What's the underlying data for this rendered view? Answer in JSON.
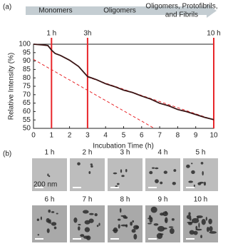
{
  "panel_a": "(a)",
  "panel_b": "(b)",
  "chart_data": {
    "type": "line",
    "stages": [
      [
        "Monomers"
      ],
      [
        "Oligomers"
      ],
      [
        "Oligomers, Protofibrils,",
        "and Fibrils"
      ]
    ],
    "markers": [
      {
        "x": 1,
        "label": "1 h"
      },
      {
        "x": 3,
        "label": "3h"
      },
      {
        "x": 10,
        "label": "10 h"
      }
    ],
    "marker_color": "#e8262a",
    "x_label": "Incubation Time (h)",
    "y_label": "Relative Intensity (%)",
    "x": [
      0,
      0.5,
      0.8,
      1,
      1.2,
      1.5,
      2,
      2.5,
      3,
      3.5,
      4,
      4.5,
      5,
      5.5,
      6,
      6.5,
      7,
      7.5,
      8,
      8.5,
      9,
      9.5,
      10
    ],
    "values": [
      100,
      99.6,
      99.2,
      96.5,
      94.5,
      93.3,
      90.5,
      86.8,
      80.8,
      78.9,
      76.5,
      74.8,
      72.7,
      71.3,
      69.2,
      67.4,
      64.9,
      63.4,
      61.2,
      59.9,
      58.2,
      56.5,
      55.2
    ],
    "color": "#3a1414",
    "fits": [
      {
        "x": [
          0,
          6.7
        ],
        "values": [
          91,
          50
        ]
      },
      {
        "x": [
          3,
          10
        ],
        "values": [
          80.5,
          55
        ]
      }
    ],
    "xlim": [
      0,
      10
    ],
    "ylim": [
      50,
      100
    ],
    "xticks": [
      0,
      1,
      2,
      3,
      4,
      5,
      6,
      7,
      8,
      9,
      10
    ],
    "yticks": [
      50,
      55,
      60,
      65,
      70,
      75,
      80,
      85,
      90,
      95,
      100
    ]
  },
  "micrographs": {
    "labels": [
      "1 h",
      "2 h",
      "3 h",
      "4 h",
      "5 h",
      "6 h",
      "7 h",
      "8 h",
      "9 h",
      "10 h"
    ],
    "scale_bar": "200 nm"
  }
}
